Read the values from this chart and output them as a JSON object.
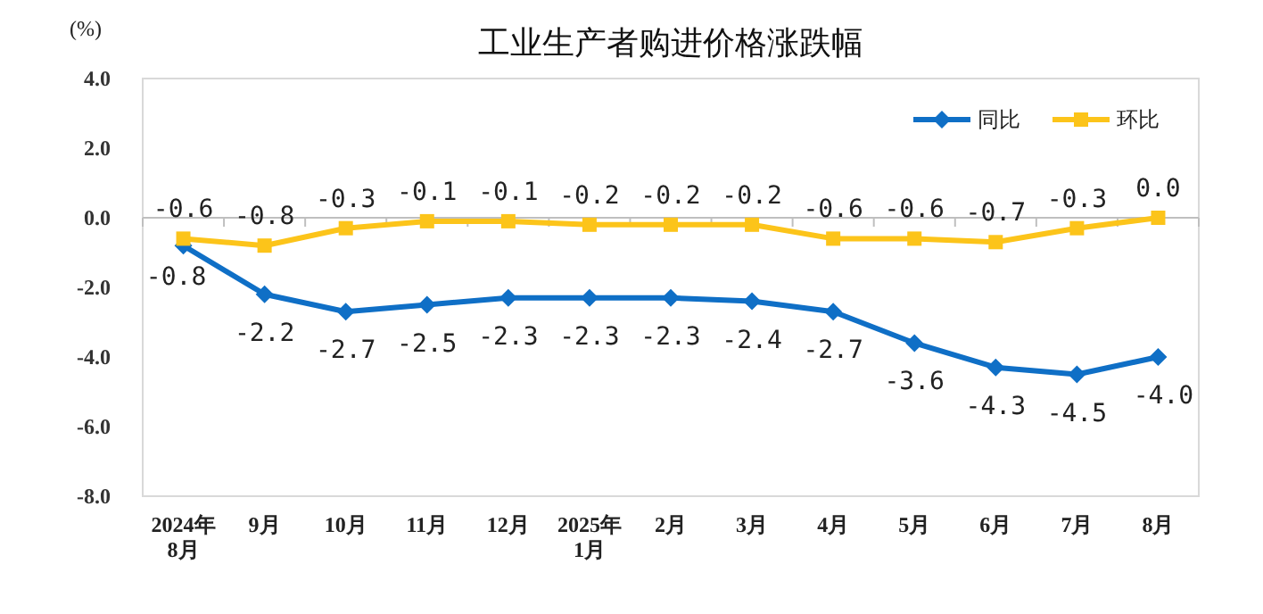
{
  "chart_data": {
    "type": "line",
    "title": "工业生产者购进价格涨跌幅",
    "ylabel": "(%)",
    "categories": [
      "2024年\n8月",
      "9月",
      "10月",
      "11月",
      "12月",
      "2025年\n1月",
      "2月",
      "3月",
      "4月",
      "5月",
      "6月",
      "7月",
      "8月"
    ],
    "series": [
      {
        "name": "同比",
        "color": "#0f6fc6",
        "marker": "diamond",
        "values": [
          -0.8,
          -2.2,
          -2.7,
          -2.5,
          -2.3,
          -2.3,
          -2.3,
          -2.4,
          -2.7,
          -3.6,
          -4.3,
          -4.5,
          -4.0
        ],
        "value_labels": [
          "-0.8",
          "-2.2",
          "-2.7",
          "-2.5",
          "-2.3",
          "-2.3",
          "-2.3",
          "-2.4",
          "-2.7",
          "-3.6",
          "-4.3",
          "-4.5",
          "-4.0"
        ]
      },
      {
        "name": "环比",
        "color": "#fcc41a",
        "marker": "square",
        "values": [
          -0.6,
          -0.8,
          -0.3,
          -0.1,
          -0.1,
          -0.2,
          -0.2,
          -0.2,
          -0.6,
          -0.6,
          -0.7,
          -0.3,
          0.0
        ],
        "value_labels": [
          "-0.6",
          "-0.8",
          "-0.3",
          "-0.1",
          "-0.1",
          "-0.2",
          "-0.2",
          "-0.2",
          "-0.6",
          "-0.6",
          "-0.7",
          "-0.3",
          "0.0"
        ]
      }
    ],
    "ylim": [
      -8,
      4
    ],
    "yticks": [
      {
        "value": 4,
        "label": "4.0"
      },
      {
        "value": 2,
        "label": "2.0"
      },
      {
        "value": 0,
        "label": "0.0"
      },
      {
        "value": -2,
        "label": "-2.0"
      },
      {
        "value": -4,
        "label": "-4.0"
      },
      {
        "value": -6,
        "label": "-6.0"
      },
      {
        "value": -8,
        "label": "-8.0"
      }
    ],
    "legend": "top right",
    "line_style": "solid"
  }
}
